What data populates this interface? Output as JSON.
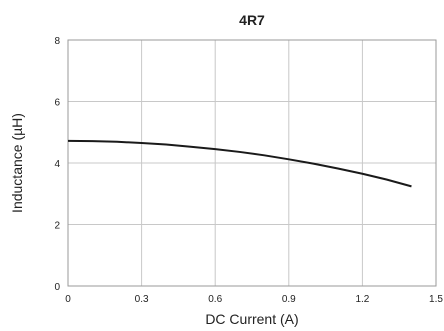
{
  "chart_data": {
    "type": "line",
    "title": "4R7",
    "xlabel": "DC Current (A)",
    "ylabel": "Inductance (µH)",
    "xlim": [
      0,
      1.5
    ],
    "ylim": [
      0,
      8
    ],
    "xticks": [
      "0",
      "0.3",
      "0.6",
      "0.9",
      "1.2",
      "1.5"
    ],
    "yticks": [
      "0",
      "2",
      "4",
      "6",
      "8"
    ],
    "grid": true,
    "legend": "none",
    "series": [
      {
        "color": "#1a1a1a",
        "x": [
          0,
          0.1,
          0.2,
          0.3,
          0.4,
          0.5,
          0.6,
          0.7,
          0.8,
          0.9,
          1.0,
          1.1,
          1.2,
          1.3,
          1.4
        ],
        "y": [
          4.72,
          4.71,
          4.69,
          4.65,
          4.6,
          4.53,
          4.45,
          4.36,
          4.25,
          4.12,
          3.98,
          3.82,
          3.65,
          3.46,
          3.24
        ]
      }
    ]
  }
}
